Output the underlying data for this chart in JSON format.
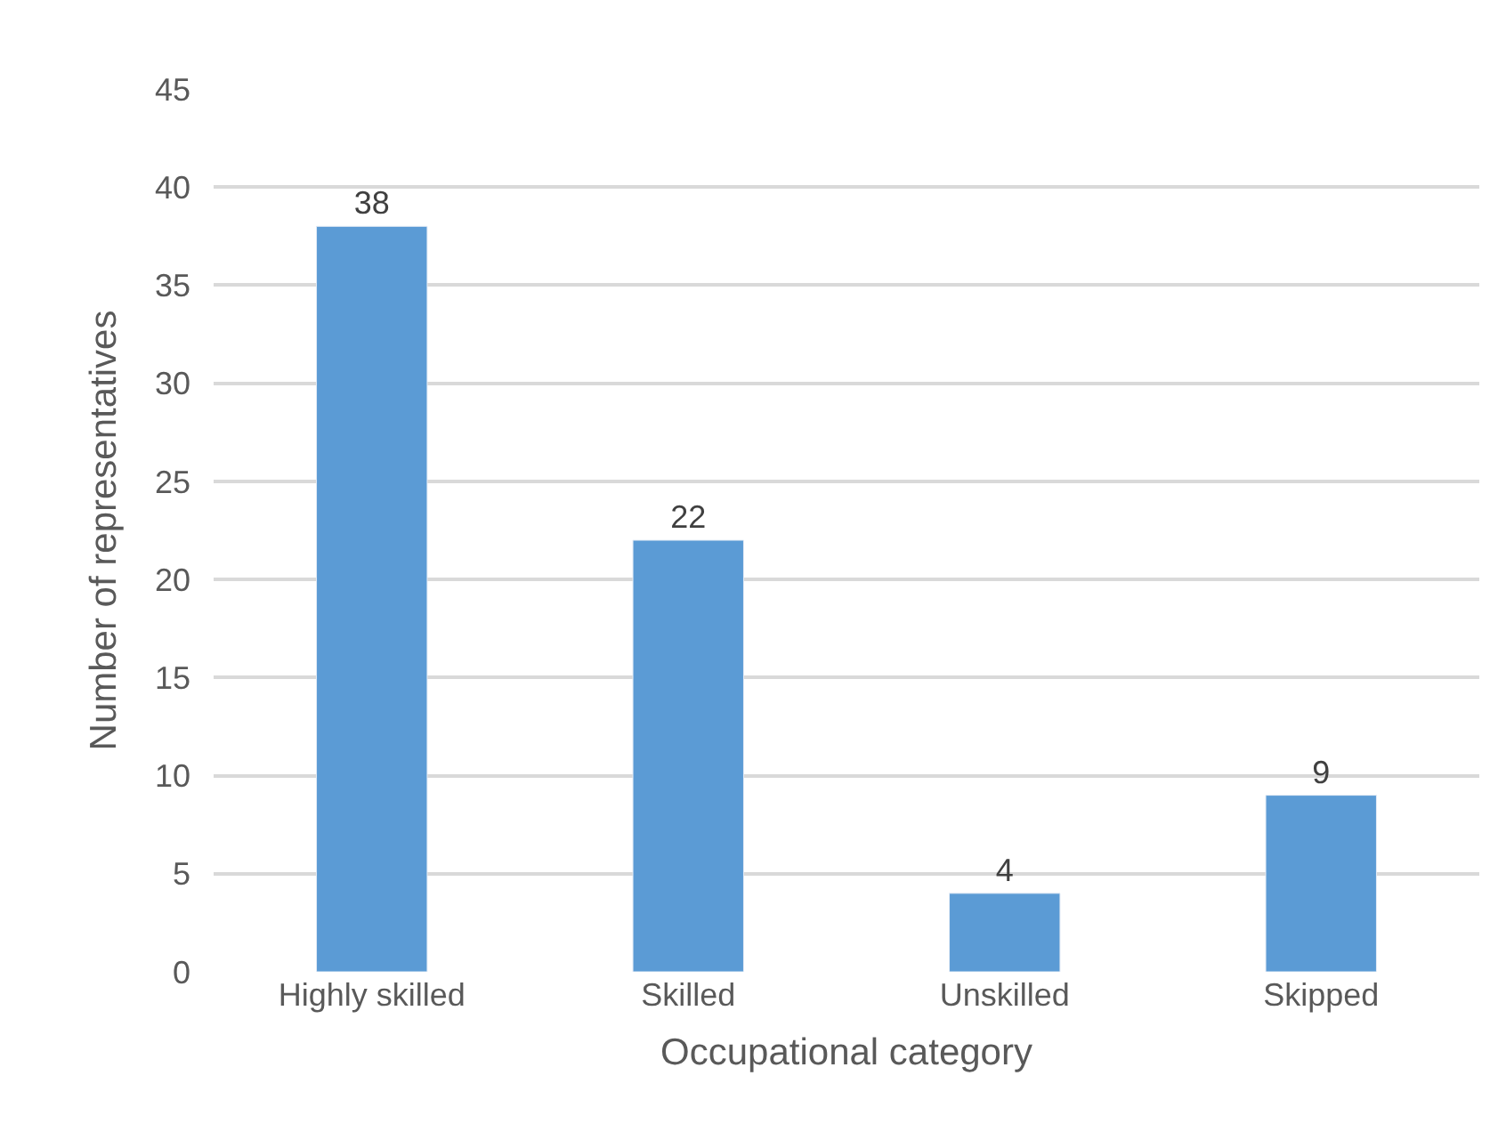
{
  "chart_data": {
    "type": "bar",
    "xlabel": "Occupational category",
    "ylabel": "Number of representatives",
    "categories": [
      "Highly skilled",
      "Skilled",
      "Unskilled",
      "Skipped"
    ],
    "values": [
      38,
      22,
      4,
      9
    ],
    "color": "#5b9bd5",
    "ylim": [
      0,
      45
    ],
    "yticks": [
      0,
      5,
      10,
      15,
      20,
      25,
      30,
      35,
      40,
      45
    ],
    "grid": "y",
    "data_labels": true
  }
}
